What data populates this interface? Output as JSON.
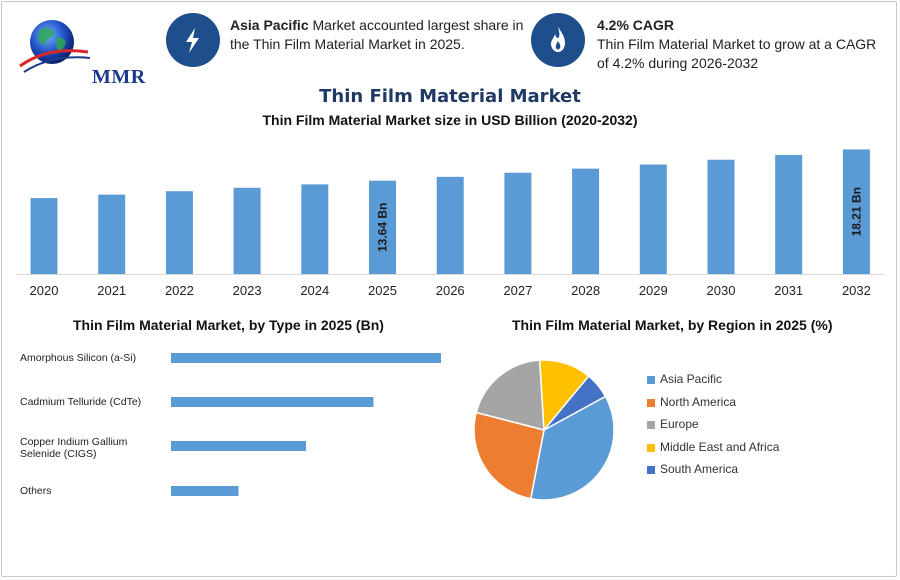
{
  "logo": {
    "text": "MMR"
  },
  "info": [
    {
      "icon": "lightning-icon",
      "bold": "Asia Pacific",
      "text": " Market accounted largest share in the Thin Film Material Market in 2025."
    },
    {
      "icon": "flame-icon",
      "bold": "4.2% CAGR",
      "text": "Thin Film Material Market to grow at a CAGR of 4.2% during 2026-2032"
    }
  ],
  "header": {
    "title": "Thin Film Material Market",
    "subtitle": "Thin Film Material Market size in USD Billion (2020-2032)"
  },
  "colors": {
    "bar": "#5b9bd5",
    "title": "#1f3864",
    "icon_bg": "#1f4e8c"
  },
  "chart_data": [
    {
      "type": "bar",
      "title": "Thin Film Material Market size in USD Billion (2020-2032)",
      "categories": [
        "2020",
        "2021",
        "2022",
        "2023",
        "2024",
        "2025",
        "2026",
        "2027",
        "2028",
        "2029",
        "2030",
        "2031",
        "2032"
      ],
      "values": [
        11.1,
        11.6,
        12.1,
        12.6,
        13.1,
        13.64,
        14.2,
        14.8,
        15.4,
        16.0,
        16.7,
        17.4,
        18.21
      ],
      "data_labels": {
        "5": "13.64 Bn",
        "12": "18.21 Bn"
      },
      "ylim": [
        0,
        19
      ],
      "xlabel": "",
      "ylabel": ""
    },
    {
      "type": "bar",
      "orientation": "horizontal",
      "title": "Thin Film Material Market, by Type in 2025 (Bn)",
      "categories": [
        "Amorphous Silicon (a-Si)",
        "Cadmium Telluride (CdTe)",
        "Copper Indium Gallium Selenide (CIGS)",
        "Others"
      ],
      "values": [
        5.4,
        4.05,
        2.7,
        1.35
      ],
      "xlim": [
        0,
        5.4
      ]
    },
    {
      "type": "pie",
      "title": "Thin Film Material Market, by Region in 2025 (%)",
      "labels": [
        "Asia Pacific",
        "North America",
        "Europe",
        "Middle East and Africa",
        "South America"
      ],
      "values": [
        36,
        26,
        20,
        12,
        6
      ],
      "colors": [
        "#5b9bd5",
        "#ed7d31",
        "#a5a5a5",
        "#ffc000",
        "#4472c4"
      ]
    }
  ]
}
